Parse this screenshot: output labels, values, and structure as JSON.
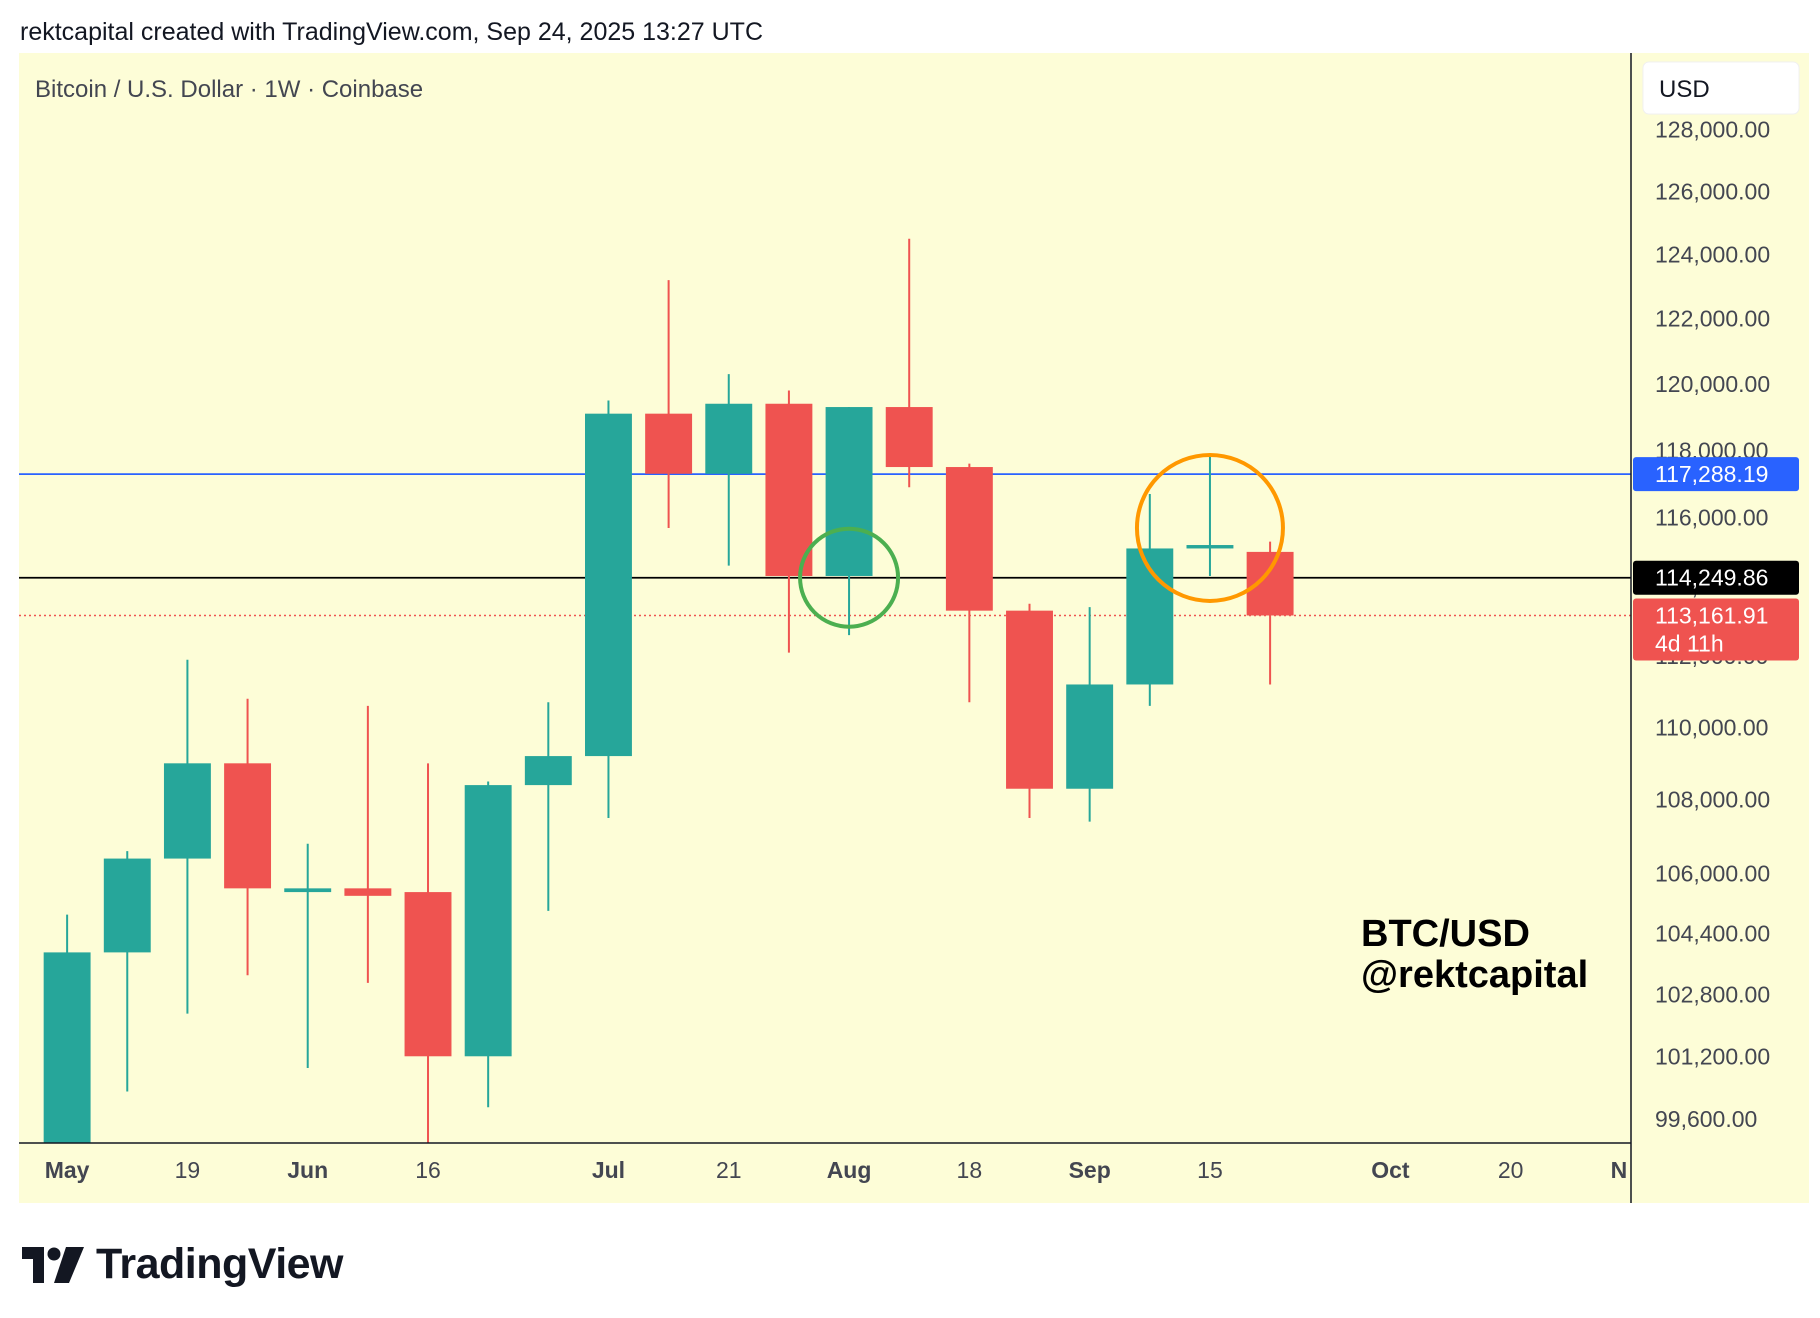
{
  "header": {
    "attribution": "rektcapital created with TradingView.com, Sep 24, 2025 13:27 UTC"
  },
  "chart_title": "Bitcoin / U.S. Dollar · 1W · Coinbase",
  "currency_button": "USD",
  "watermark": {
    "line1": "BTC/USD",
    "line2": "@rektcapital"
  },
  "footer": {
    "brand": "TradingView"
  },
  "colors": {
    "background": "#fdfdd7",
    "up": "#26a69a",
    "down": "#ef5350",
    "resistance_line": "#2962ff",
    "support_line": "#000000",
    "price_line": "#ef5350",
    "green_circle": "#4caf50",
    "orange_circle": "#ff9800"
  },
  "chart_data": {
    "type": "candlestick",
    "title": "Bitcoin / U.S. Dollar · 1W · Coinbase",
    "y_scale": "log",
    "ylim": [
      99000,
      130500
    ],
    "x_range": [
      -0.8,
      26.0
    ],
    "y_ticks": [
      "128,000.00",
      "126,000.00",
      "124,000.00",
      "122,000.00",
      "120,000.00",
      "118,000.00",
      "116,000.00",
      "114,000.00",
      "112,000.00",
      "110,000.00",
      "108,000.00",
      "106,000.00",
      "104,400.00",
      "102,800.00",
      "101,200.00",
      "99,600.00"
    ],
    "x_ticks": [
      {
        "label": "May",
        "i": 0,
        "bold": true
      },
      {
        "label": "19",
        "i": 2,
        "bold": false
      },
      {
        "label": "Jun",
        "i": 4,
        "bold": true
      },
      {
        "label": "16",
        "i": 6,
        "bold": false
      },
      {
        "label": "Jul",
        "i": 9,
        "bold": true
      },
      {
        "label": "21",
        "i": 11,
        "bold": false
      },
      {
        "label": "Aug",
        "i": 13,
        "bold": true
      },
      {
        "label": "18",
        "i": 15,
        "bold": false
      },
      {
        "label": "Sep",
        "i": 17,
        "bold": true
      },
      {
        "label": "15",
        "i": 19,
        "bold": false
      },
      {
        "label": "Oct",
        "i": 22,
        "bold": true
      },
      {
        "label": "20",
        "i": 24,
        "bold": false
      },
      {
        "label": "N",
        "i": 25.8,
        "bold": true
      }
    ],
    "candles": [
      {
        "week": "2025-04-28",
        "open": 97000,
        "high": 104900,
        "low": 96000,
        "close": 103900
      },
      {
        "week": "2025-05-05",
        "open": 103900,
        "high": 106600,
        "low": 100300,
        "close": 106400
      },
      {
        "week": "2025-05-12",
        "open": 106400,
        "high": 111900,
        "low": 102300,
        "close": 109000
      },
      {
        "week": "2025-05-19",
        "open": 109000,
        "high": 110800,
        "low": 103300,
        "close": 105600
      },
      {
        "week": "2025-05-26",
        "open": 105500,
        "high": 106800,
        "low": 100900,
        "close": 105600
      },
      {
        "week": "2025-06-02",
        "open": 105600,
        "high": 110600,
        "low": 103100,
        "close": 105400
      },
      {
        "week": "2025-06-09",
        "open": 105500,
        "high": 109000,
        "low": 99000,
        "close": 101200
      },
      {
        "week": "2025-06-16",
        "open": 101200,
        "high": 108500,
        "low": 99900,
        "close": 108400
      },
      {
        "week": "2025-06-23",
        "open": 108400,
        "high": 110700,
        "low": 105000,
        "close": 109200
      },
      {
        "week": "2025-06-30",
        "open": 109200,
        "high": 119500,
        "low": 107500,
        "close": 119100
      },
      {
        "week": "2025-07-07",
        "open": 119100,
        "high": 123200,
        "low": 115700,
        "close": 117300
      },
      {
        "week": "2025-07-14",
        "open": 117300,
        "high": 120300,
        "low": 114600,
        "close": 119400
      },
      {
        "week": "2025-07-21",
        "open": 119400,
        "high": 119800,
        "low": 112100,
        "close": 114300
      },
      {
        "week": "2025-07-28",
        "open": 114300,
        "high": 119300,
        "low": 112600,
        "close": 119300
      },
      {
        "week": "2025-08-04",
        "open": 119300,
        "high": 124500,
        "low": 116900,
        "close": 117500
      },
      {
        "week": "2025-08-11",
        "open": 117500,
        "high": 117600,
        "low": 110700,
        "close": 113300
      },
      {
        "week": "2025-08-18",
        "open": 113300,
        "high": 113500,
        "low": 107500,
        "close": 108300
      },
      {
        "week": "2025-08-25",
        "open": 108300,
        "high": 113400,
        "low": 107400,
        "close": 111200
      },
      {
        "week": "2025-09-01",
        "open": 111200,
        "high": 116700,
        "low": 110600,
        "close": 115100
      },
      {
        "week": "2025-09-08",
        "open": 115100,
        "high": 117900,
        "low": 114300,
        "close": 115200
      },
      {
        "week": "2025-09-15",
        "open": 115000,
        "high": 115300,
        "low": 111200,
        "close": 113161.91
      }
    ],
    "horizontal_lines": [
      {
        "name": "resistance",
        "value": 117288.19,
        "label": "117,288.19",
        "style": "solid",
        "color": "#2962ff"
      },
      {
        "name": "support",
        "value": 114249.86,
        "label": "114,249.86",
        "style": "solid",
        "color": "#000000"
      },
      {
        "name": "last-price",
        "value": 113161.91,
        "label": "113,161.91",
        "sublabel": "4d 11h",
        "style": "dotted",
        "color": "#ef5350"
      }
    ],
    "annotations": [
      {
        "type": "circle",
        "color": "#4caf50",
        "i": 13,
        "value": 114250
      },
      {
        "type": "circle",
        "color": "#ff9800",
        "i": 19,
        "value": 115700
      }
    ]
  }
}
